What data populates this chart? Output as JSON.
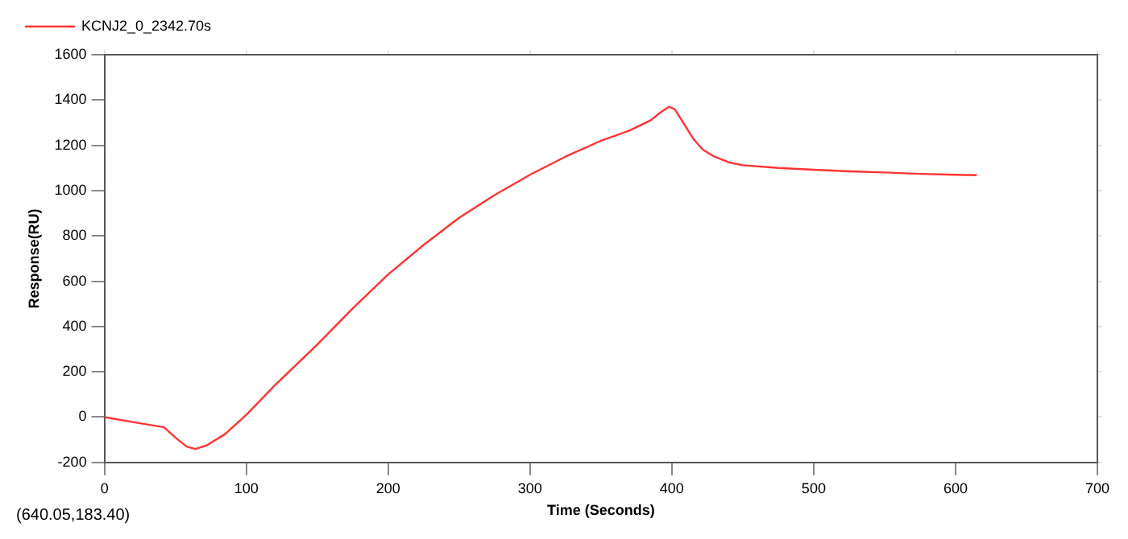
{
  "chart_data": {
    "type": "line",
    "xlabel": "Time (Seconds)",
    "ylabel": "Response(RU)",
    "annotations": [
      "(640.05,183.40)"
    ],
    "legend": "top left",
    "grid": false,
    "marker": "none",
    "line_style": "solid",
    "xlim": [
      0,
      700
    ],
    "xticks": [
      0,
      100,
      200,
      300,
      400,
      500,
      600,
      700
    ],
    "ylim": [
      -200,
      1600
    ],
    "yticks": [
      -200,
      0,
      200,
      400,
      600,
      800,
      1000,
      1200,
      1400,
      1600
    ],
    "series": [
      {
        "name": "KCNJ2_0_2342.70s",
        "color": "#ff3333",
        "x": [
          0,
          20,
          42,
          50,
          58,
          64,
          72,
          85,
          100,
          120,
          150,
          175,
          200,
          225,
          250,
          275,
          300,
          325,
          350,
          370,
          385,
          392,
          398,
          402,
          408,
          415,
          422,
          430,
          440,
          450,
          475,
          500,
          525,
          550,
          575,
          600,
          615
        ],
        "values": [
          0,
          -22,
          -45,
          -90,
          -130,
          -141,
          -125,
          -75,
          10,
          140,
          320,
          480,
          630,
          760,
          880,
          980,
          1070,
          1150,
          1220,
          1265,
          1310,
          1345,
          1370,
          1360,
          1300,
          1230,
          1180,
          1150,
          1125,
          1112,
          1100,
          1092,
          1085,
          1080,
          1074,
          1070,
          1068
        ]
      }
    ]
  }
}
